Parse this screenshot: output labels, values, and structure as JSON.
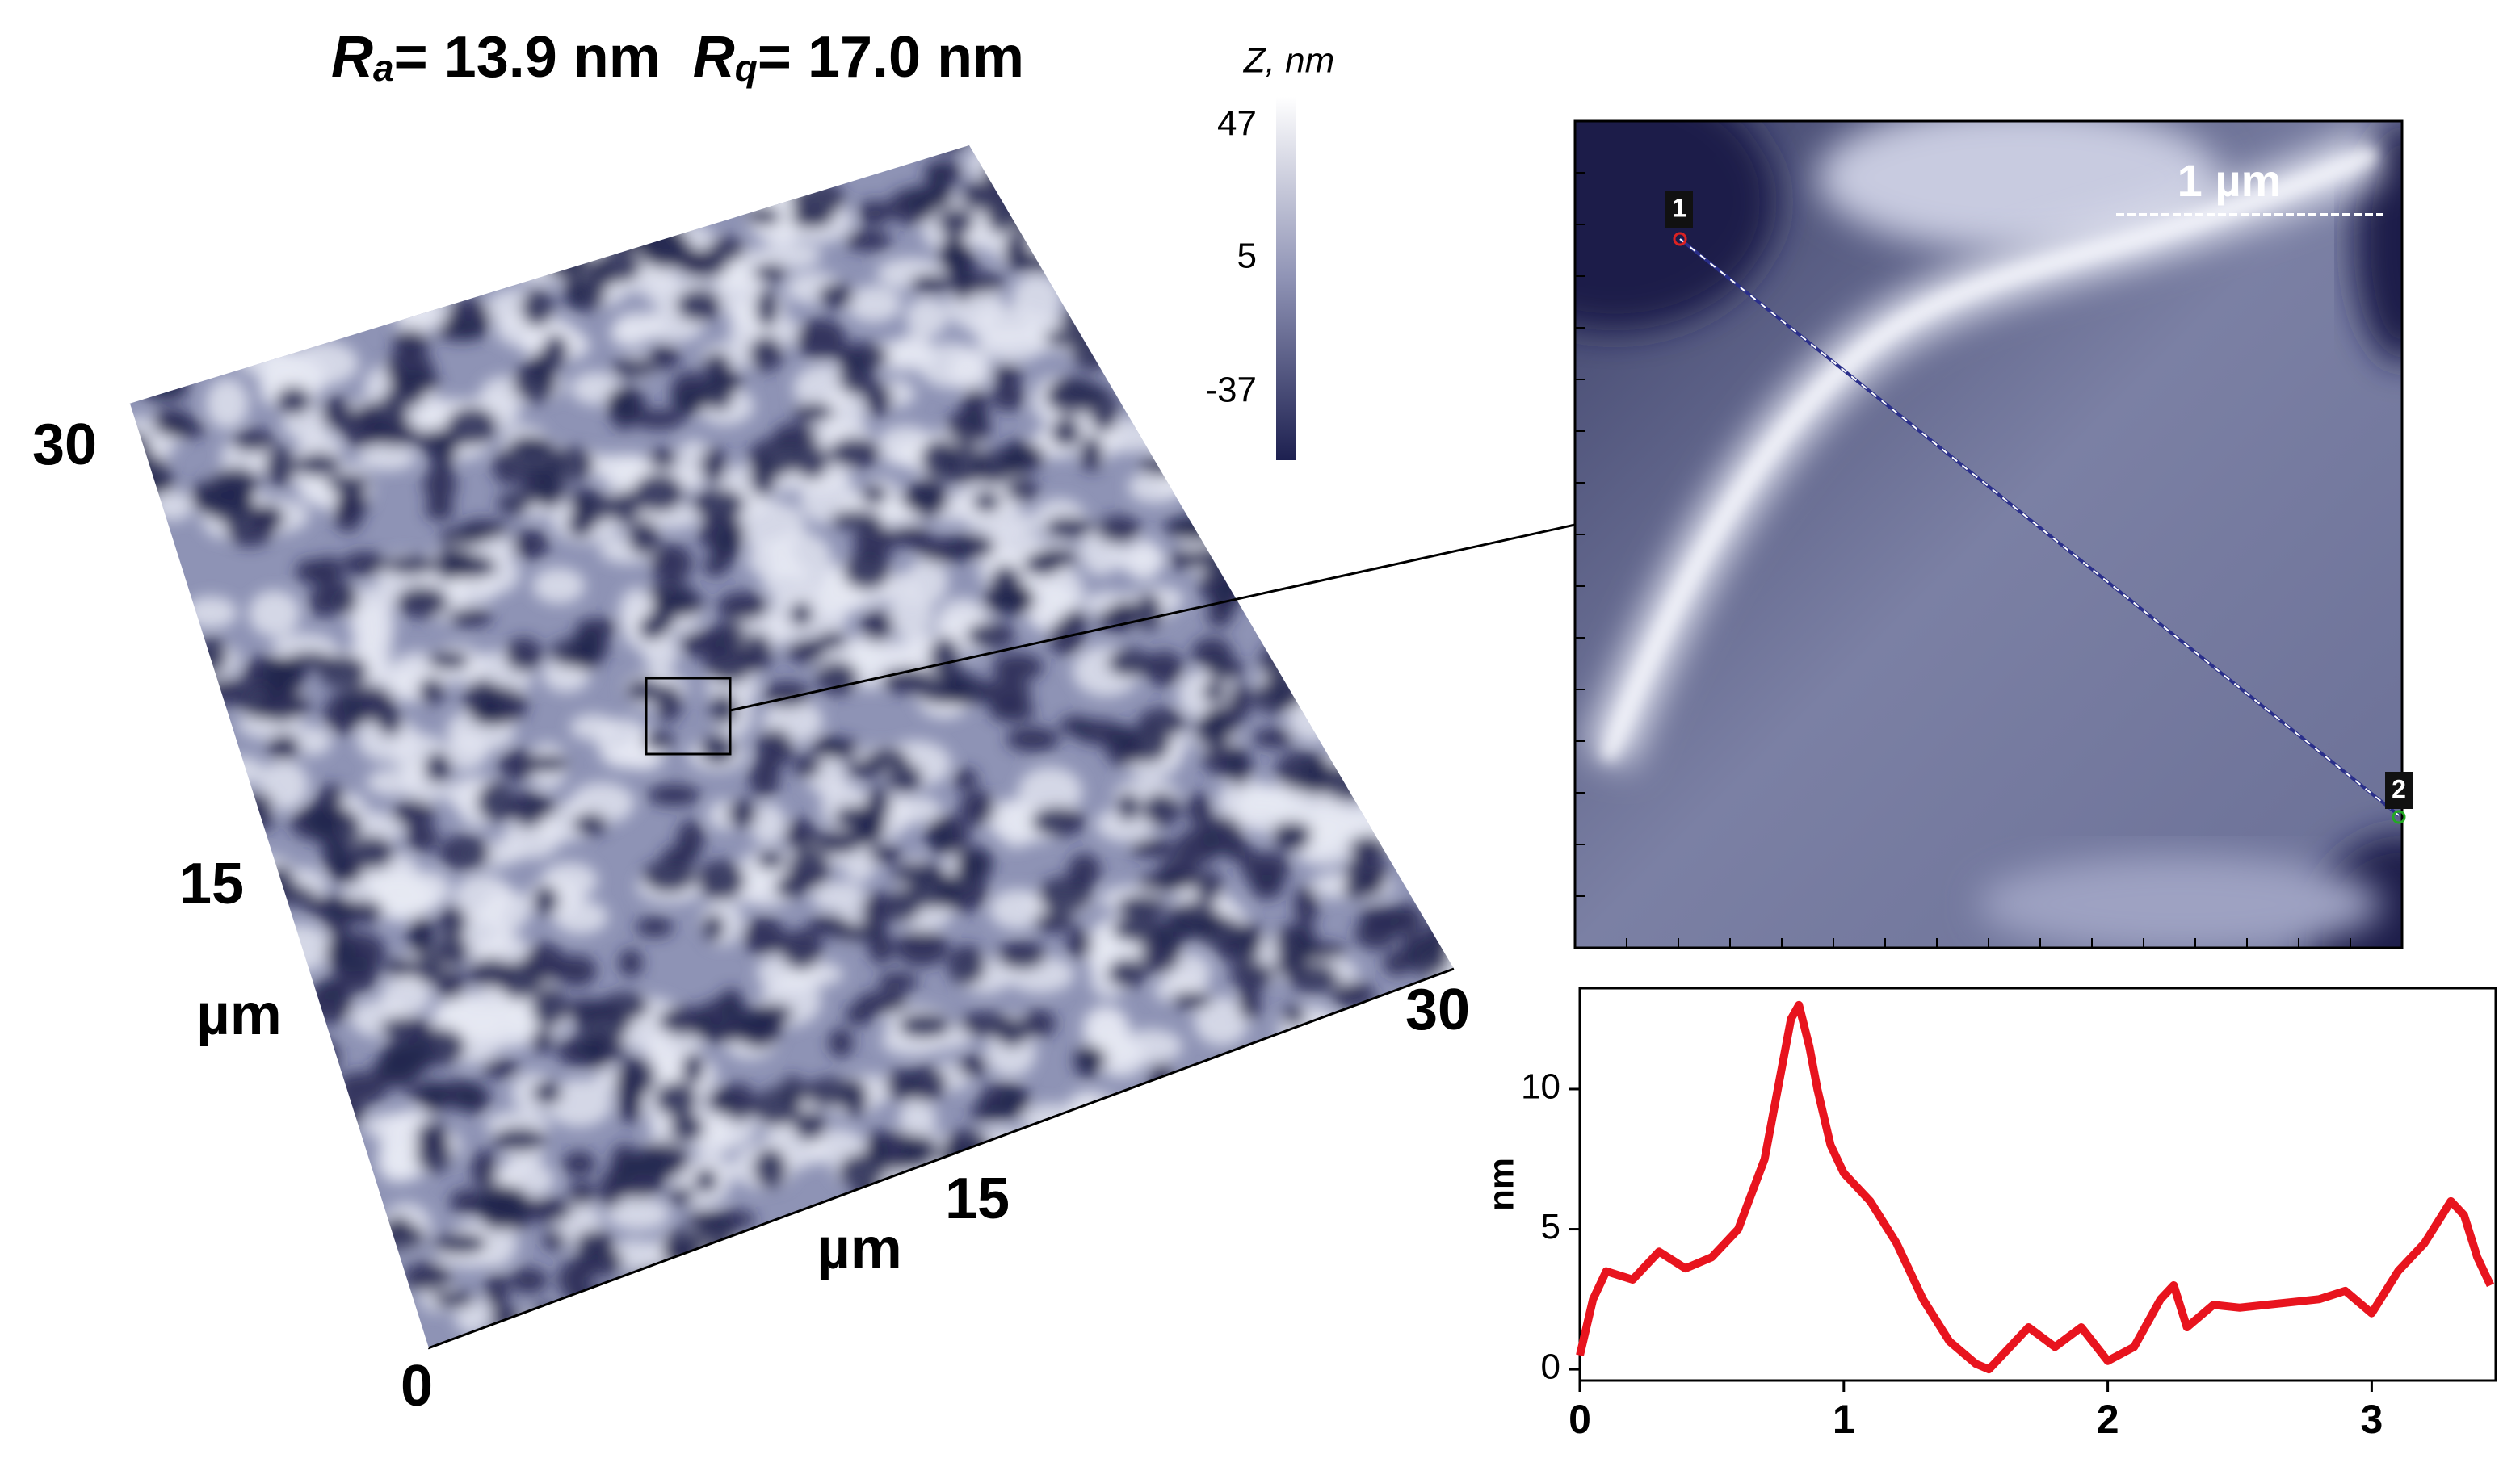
{
  "roughness": [
    {
      "symbol": "R",
      "subscript": "a",
      "value": "= 13.9 nm"
    },
    {
      "symbol": "R",
      "subscript": "q",
      "value": "= 17.0 nm"
    }
  ],
  "surface_3d": {
    "left_axis": {
      "ticks": [
        "30",
        "15"
      ],
      "label": "µm"
    },
    "bottom_axis": {
      "ticks": [
        "15",
        "30"
      ],
      "label": "µm"
    },
    "origin": "0"
  },
  "colorbar": {
    "label": "Z, nm",
    "ticks": [
      "47",
      "5",
      "-37"
    ]
  },
  "inset": {
    "scale_bar": "1 µm",
    "markers": [
      "1",
      "2"
    ]
  },
  "chart_data": {
    "type": "line",
    "y_label": "nm",
    "x": [
      0,
      0.05,
      0.1,
      0.2,
      0.3,
      0.4,
      0.5,
      0.6,
      0.7,
      0.75,
      0.8,
      0.83,
      0.87,
      0.9,
      0.95,
      1.0,
      1.1,
      1.2,
      1.3,
      1.4,
      1.5,
      1.55,
      1.6,
      1.7,
      1.8,
      1.9,
      2.0,
      2.1,
      2.2,
      2.25,
      2.3,
      2.4,
      2.5,
      2.6,
      2.7,
      2.8,
      2.9,
      3.0,
      3.1,
      3.2,
      3.3,
      3.35,
      3.4,
      3.45
    ],
    "series": [
      {
        "color": "#e8141e",
        "values": [
          0.5,
          2.5,
          3.5,
          3.2,
          4.2,
          3.6,
          4.0,
          5.0,
          7.5,
          10,
          12.5,
          13,
          11.5,
          10,
          8,
          7,
          6,
          4.5,
          2.5,
          1,
          0.2,
          0,
          0.5,
          1.5,
          0.8,
          1.5,
          0.3,
          0.8,
          2.5,
          3,
          1.5,
          2.3,
          2.2,
          2.3,
          2.4,
          2.5,
          2.8,
          2,
          3.5,
          4.5,
          6,
          5.5,
          4,
          3
        ]
      }
    ],
    "xlim": [
      0,
      3.47
    ],
    "ylim": [
      -0.4,
      13.6
    ],
    "xticks": [
      0,
      1,
      2,
      3
    ],
    "yticks": [
      0,
      5,
      10
    ]
  }
}
